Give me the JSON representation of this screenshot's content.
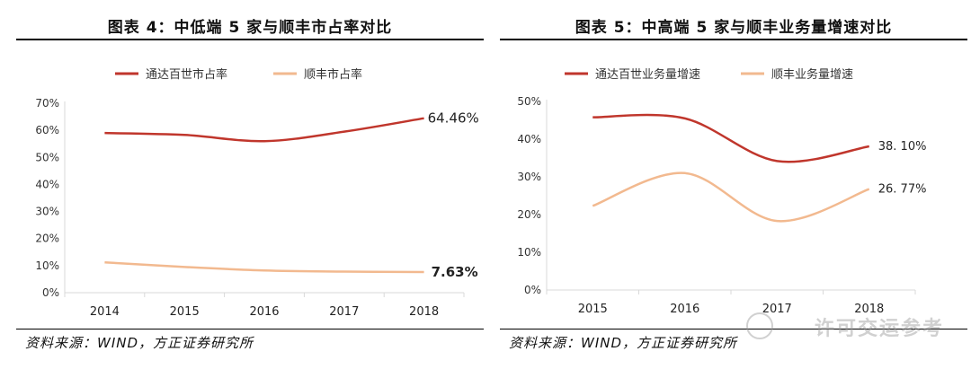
{
  "charts": [
    {
      "title": "图表 4：中低端 5 家与顺丰市占率对比",
      "source": "资料来源：WIND，方正证券研究所"
    },
    {
      "title": "图表 5：中高端 5 家与顺丰业务量增速对比",
      "source": "资料来源：WIND，方正证券研究所"
    }
  ],
  "watermark": "许可交运参考",
  "colors": {
    "red": "#c0362c",
    "orange": "#f2b98f",
    "axis": "#d9d9d9"
  },
  "chart_data": [
    {
      "type": "line",
      "title": "图表 4：中低端 5 家与顺丰市占率对比",
      "categories": [
        "2014",
        "2015",
        "2016",
        "2017",
        "2018"
      ],
      "series": [
        {
          "name": "通达百世市占率",
          "values": [
            59,
            58.3,
            56,
            59.5,
            64.46
          ],
          "color": "#c0362c"
        },
        {
          "name": "顺丰市占率",
          "values": [
            11.2,
            9.5,
            8.2,
            7.8,
            7.63
          ],
          "color": "#f2b98f"
        }
      ],
      "end_labels": [
        "64.46%",
        "7.63%"
      ],
      "yticks": [
        "0%",
        "10%",
        "20%",
        "30%",
        "40%",
        "50%",
        "60%",
        "70%"
      ],
      "ylim": [
        0,
        70
      ],
      "legend": "top"
    },
    {
      "type": "line",
      "title": "图表 5：中高端 5 家与顺丰业务量增速对比",
      "categories": [
        "2015",
        "2016",
        "2017",
        "2018"
      ],
      "series": [
        {
          "name": "通达百世业务量增速",
          "values": [
            45.8,
            45.5,
            34.2,
            38.1
          ],
          "color": "#c0362c"
        },
        {
          "name": "顺丰业务量增速",
          "values": [
            22.3,
            31.0,
            18.3,
            26.77
          ],
          "color": "#f2b98f"
        }
      ],
      "end_labels": [
        "38. 10%",
        "26. 77%"
      ],
      "yticks": [
        "0%",
        "10%",
        "20%",
        "30%",
        "40%",
        "50%"
      ],
      "ylim": [
        0,
        50
      ],
      "legend": "top"
    }
  ]
}
